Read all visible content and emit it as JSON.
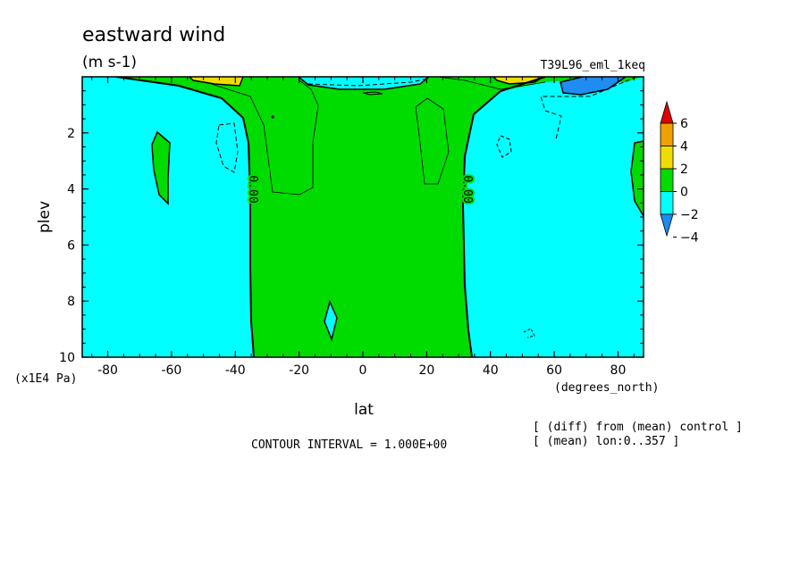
{
  "chart_data": {
    "type": "contour",
    "title": "eastward wind",
    "units": "(m s-1)",
    "experiment": "T39L96_eml_1keq",
    "xlabel": "lat",
    "x_units": "(degrees_north)",
    "ylabel": "plev",
    "y_units": "(x1E4 Pa)",
    "xlim": [
      -88,
      88
    ],
    "ylim": [
      10,
      0
    ],
    "x_ticks": [
      -80,
      -60,
      -40,
      -20,
      0,
      20,
      40,
      60,
      80
    ],
    "y_ticks": [
      2,
      4,
      6,
      8,
      10
    ],
    "contour_interval": "CONTOUR INTERVAL = 1.000E+00",
    "zero_contour_label": "0.00",
    "notes": [
      "[ (diff) from (mean) control ]",
      "[ (mean) lon:0..357 ]"
    ],
    "colorbar": {
      "levels": [
        -4,
        -2,
        0,
        2,
        4,
        6
      ],
      "colors": [
        "#1e8cf0",
        "#00ffff",
        "#00dc00",
        "#f0dc00",
        "#f0a000",
        "#e00000"
      ],
      "labels": [
        "6",
        "4",
        "2",
        "0",
        "−2",
        "−4"
      ]
    },
    "regions": [
      {
        "value_range": "-2..0",
        "color": "#00ffff",
        "where": "southern hemisphere poleward of ~35S"
      },
      {
        "value_range": "0..2",
        "color": "#00dc00",
        "where": "tropics ~35S to ~32N"
      },
      {
        "value_range": "-2..0",
        "color": "#00ffff",
        "where": "northern hemisphere poleward of ~32N"
      },
      {
        "value_range": "2..4",
        "color": "#f0dc00",
        "where": "upper levels near 55S and 50N"
      },
      {
        "value_range": "-4..-2",
        "color": "#1e8cf0",
        "where": "upper levels near 70N"
      }
    ]
  }
}
